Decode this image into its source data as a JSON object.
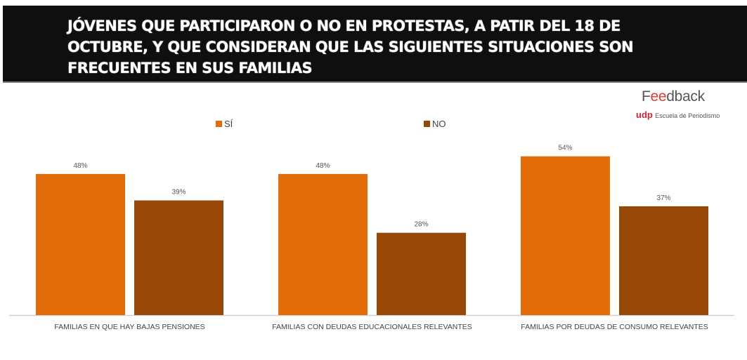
{
  "header": {
    "title": "JÓVENES QUE PARTICIPARON O NO EN PROTESTAS, A PATIR DEL 18 DE OCTUBRE, Y QUE CONSIDERAN QUE LAS SIGUIENTES SITUACIONES SON FRECUENTES EN SUS FAMILIAS"
  },
  "logo": {
    "brand_prefix": "F",
    "brand_accent": "ee",
    "brand_suffix": "dback",
    "udp": "udp",
    "school": "Escuela de Periodismo"
  },
  "chart_data": {
    "type": "bar",
    "title": "JÓVENES QUE PARTICIPARON O NO EN PROTESTAS, A PATIR DEL 18 DE OCTUBRE, Y QUE CONSIDERAN QUE LAS SIGUIENTES SITUACIONES SON FRECUENTES EN SUS FAMILIAS",
    "xlabel": "",
    "ylabel": "",
    "ylim": [
      0,
      60
    ],
    "grid": false,
    "legend_position": "top",
    "categories": [
      "FAMILIAS EN QUE HAY BAJAS PENSIONES",
      "FAMILIAS CON DEUDAS EDUCACIONALES RELEVANTES",
      "FAMILIAS POR DEUDAS DE CONSUMO RELEVANTES"
    ],
    "series": [
      {
        "name": "SÍ",
        "color": "#e36c0a",
        "values": [
          48,
          48,
          54
        ],
        "labels": [
          "48%",
          "48%",
          "54%"
        ]
      },
      {
        "name": "NO",
        "color": "#974806",
        "values": [
          39,
          28,
          37
        ],
        "labels": [
          "39%",
          "28%",
          "37%"
        ]
      }
    ]
  }
}
